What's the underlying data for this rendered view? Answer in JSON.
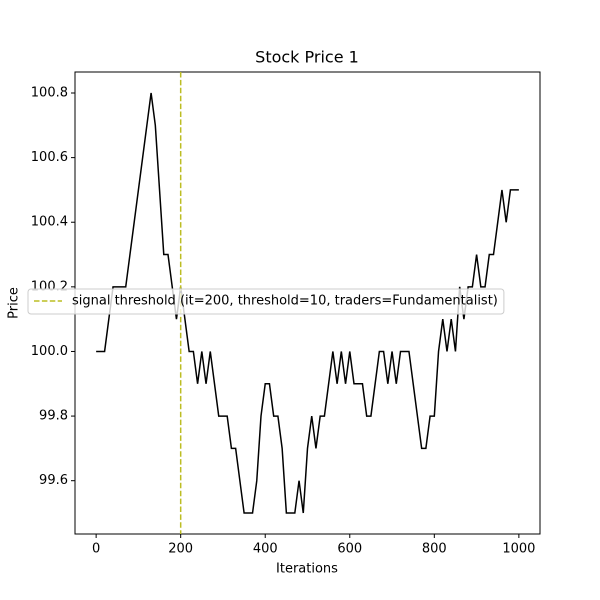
{
  "chart_data": {
    "type": "line",
    "title": "Stock Price 1",
    "xlabel": "Iterations",
    "ylabel": "Price",
    "x": [
      0,
      10,
      20,
      30,
      40,
      50,
      60,
      70,
      80,
      90,
      100,
      110,
      120,
      130,
      140,
      150,
      160,
      170,
      180,
      190,
      200,
      210,
      220,
      230,
      240,
      250,
      260,
      270,
      280,
      290,
      300,
      310,
      320,
      330,
      340,
      350,
      360,
      370,
      380,
      390,
      400,
      410,
      420,
      430,
      440,
      450,
      460,
      470,
      480,
      490,
      500,
      510,
      520,
      530,
      540,
      550,
      560,
      570,
      580,
      590,
      600,
      610,
      620,
      630,
      640,
      650,
      660,
      670,
      680,
      690,
      700,
      710,
      720,
      730,
      740,
      750,
      760,
      770,
      780,
      790,
      800,
      810,
      820,
      830,
      840,
      850,
      860,
      870,
      880,
      890,
      900,
      910,
      920,
      930,
      940,
      950,
      960,
      970,
      980,
      990,
      1000
    ],
    "series": [
      {
        "name": "Stock Price",
        "color": "#000000",
        "values": [
          100.0,
          100.0,
          100.0,
          100.1,
          100.2,
          100.2,
          100.2,
          100.2,
          100.3,
          100.4,
          100.5,
          100.6,
          100.7,
          100.8,
          100.7,
          100.5,
          100.3,
          100.3,
          100.2,
          100.1,
          100.2,
          100.1,
          100.0,
          100.0,
          99.9,
          100.0,
          99.9,
          100.0,
          99.9,
          99.8,
          99.8,
          99.8,
          99.7,
          99.7,
          99.6,
          99.5,
          99.5,
          99.5,
          99.6,
          99.8,
          99.9,
          99.9,
          99.8,
          99.8,
          99.7,
          99.5,
          99.5,
          99.5,
          99.6,
          99.5,
          99.7,
          99.8,
          99.7,
          99.8,
          99.8,
          99.9,
          100.0,
          99.9,
          100.0,
          99.9,
          100.0,
          99.9,
          99.9,
          99.9,
          99.8,
          99.8,
          99.9,
          100.0,
          100.0,
          99.9,
          100.0,
          99.9,
          100.0,
          100.0,
          100.0,
          99.9,
          99.8,
          99.7,
          99.7,
          99.8,
          99.8,
          100.0,
          100.1,
          100.0,
          100.1,
          100.0,
          100.2,
          100.1,
          100.2,
          100.2,
          100.3,
          100.2,
          100.2,
          100.3,
          100.3,
          100.4,
          100.5,
          100.4,
          100.5,
          100.5,
          100.5
        ]
      }
    ],
    "vline": {
      "x": 200,
      "color": "#bcbd22",
      "label": "signal threshold (it=200, threshold=10, traders=Fundamentalist)"
    },
    "xlim": [
      -50,
      1050
    ],
    "xticks": [
      0,
      200,
      400,
      600,
      800,
      1000
    ],
    "ylim": [
      99.435,
      100.865
    ],
    "yticks": [
      99.6,
      99.8,
      {
        "value": 100,
        "label": "100.0"
      },
      100.2,
      100.4,
      100.6,
      100.8
    ],
    "legend": "center left",
    "grid": false
  }
}
